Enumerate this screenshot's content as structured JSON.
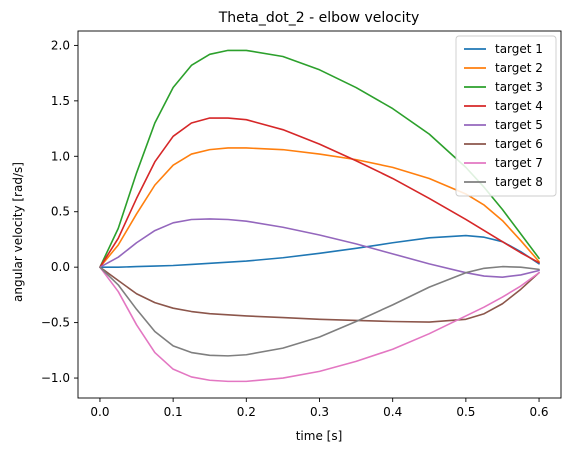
{
  "chart_data": {
    "type": "line",
    "title": "Theta_dot_2 - elbow velocity",
    "xlabel": "time [s]",
    "ylabel": "angular velocity [rad/s]",
    "xlim": [
      -0.03,
      0.63
    ],
    "ylim": [
      -1.18,
      2.13
    ],
    "xticks": [
      0.0,
      0.1,
      0.2,
      0.3,
      0.4,
      0.5,
      0.6
    ],
    "xtick_labels": [
      "0.0",
      "0.1",
      "0.2",
      "0.3",
      "0.4",
      "0.5",
      "0.6"
    ],
    "yticks": [
      -1.0,
      -0.5,
      0.0,
      0.5,
      1.0,
      1.5,
      2.0
    ],
    "ytick_labels": [
      "−1.0",
      "−0.5",
      "0.0",
      "0.5",
      "1.0",
      "1.5",
      "2.0"
    ],
    "grid": false,
    "legend_position": "top-right",
    "x": [
      0.0,
      0.025,
      0.05,
      0.075,
      0.1,
      0.125,
      0.15,
      0.175,
      0.2,
      0.25,
      0.3,
      0.35,
      0.4,
      0.45,
      0.5,
      0.525,
      0.55,
      0.575,
      0.6
    ],
    "series": [
      {
        "name": "target 1",
        "color": "#1f77b4",
        "values": [
          0.0,
          0.0,
          0.005,
          0.01,
          0.015,
          0.025,
          0.035,
          0.045,
          0.055,
          0.085,
          0.125,
          0.17,
          0.22,
          0.265,
          0.285,
          0.27,
          0.23,
          0.14,
          0.03
        ]
      },
      {
        "name": "target 2",
        "color": "#ff7f0e",
        "values": [
          0.0,
          0.2,
          0.48,
          0.74,
          0.92,
          1.02,
          1.06,
          1.075,
          1.075,
          1.06,
          1.02,
          0.97,
          0.9,
          0.8,
          0.66,
          0.56,
          0.42,
          0.24,
          0.05
        ]
      },
      {
        "name": "target 3",
        "color": "#2ca02c",
        "values": [
          0.0,
          0.35,
          0.85,
          1.3,
          1.62,
          1.82,
          1.92,
          1.955,
          1.955,
          1.9,
          1.78,
          1.62,
          1.43,
          1.2,
          0.9,
          0.72,
          0.52,
          0.3,
          0.08
        ]
      },
      {
        "name": "target 4",
        "color": "#d62728",
        "values": [
          0.0,
          0.26,
          0.62,
          0.95,
          1.18,
          1.3,
          1.345,
          1.345,
          1.33,
          1.24,
          1.11,
          0.96,
          0.8,
          0.62,
          0.43,
          0.33,
          0.23,
          0.13,
          0.04
        ]
      },
      {
        "name": "target 5",
        "color": "#9467bd",
        "values": [
          0.0,
          0.09,
          0.22,
          0.33,
          0.4,
          0.43,
          0.435,
          0.43,
          0.415,
          0.36,
          0.29,
          0.21,
          0.12,
          0.03,
          -0.05,
          -0.08,
          -0.09,
          -0.07,
          -0.03
        ]
      },
      {
        "name": "target 6",
        "color": "#8c564b",
        "values": [
          0.0,
          -0.12,
          -0.24,
          -0.32,
          -0.37,
          -0.4,
          -0.42,
          -0.43,
          -0.44,
          -0.455,
          -0.47,
          -0.48,
          -0.49,
          -0.495,
          -0.47,
          -0.42,
          -0.33,
          -0.2,
          -0.05
        ]
      },
      {
        "name": "target 7",
        "color": "#e377c2",
        "values": [
          0.0,
          -0.22,
          -0.52,
          -0.77,
          -0.92,
          -0.99,
          -1.02,
          -1.03,
          -1.03,
          -1.0,
          -0.94,
          -0.85,
          -0.74,
          -0.6,
          -0.44,
          -0.36,
          -0.27,
          -0.17,
          -0.05
        ]
      },
      {
        "name": "target 8",
        "color": "#7f7f7f",
        "values": [
          0.0,
          -0.16,
          -0.38,
          -0.58,
          -0.71,
          -0.77,
          -0.795,
          -0.8,
          -0.79,
          -0.73,
          -0.63,
          -0.49,
          -0.34,
          -0.18,
          -0.05,
          -0.01,
          0.005,
          0.0,
          -0.02
        ]
      }
    ]
  }
}
